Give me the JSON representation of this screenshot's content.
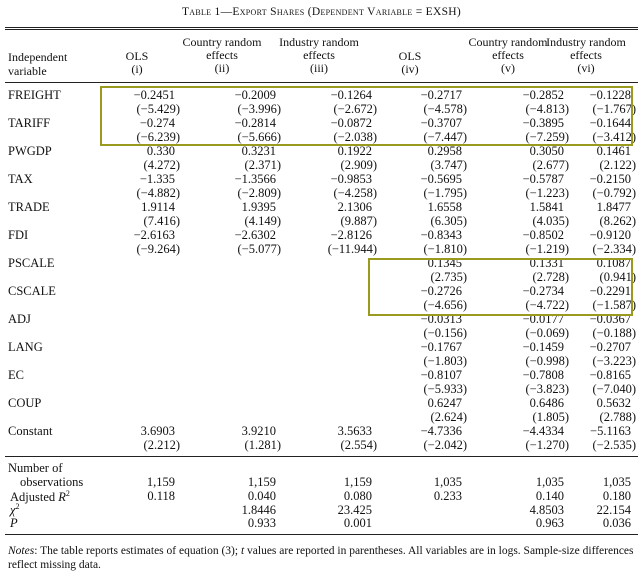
{
  "title": "Table 1—Export Shares (Dependent Variable = EXSH)",
  "header": {
    "label_line1": "Independent",
    "label_line2": "variable",
    "columns": [
      {
        "name": "OLS",
        "num": "(i)"
      },
      {
        "name": "Country random effects",
        "num": "(ii)"
      },
      {
        "name": "Industry random effects",
        "num": "(iii)"
      },
      {
        "name": "OLS",
        "num": "(iv)"
      },
      {
        "name": "Country random effects",
        "num": "(v)"
      },
      {
        "name": "Industry random effects",
        "num": "(vi)"
      }
    ]
  },
  "rows": [
    {
      "label": "FREIGHT",
      "coef": [
        "−0.2451",
        "−0.2009",
        "−0.1264",
        "−0.2717",
        "−0.2852",
        "−0.1228"
      ],
      "t": [
        "(−5.429)",
        "(−3.996)",
        "(−2.672)",
        "(−4.578)",
        "(−4.813)",
        "(−1.767)"
      ]
    },
    {
      "label": "TARIFF",
      "coef": [
        "−0.274",
        "−0.2814",
        "−0.0872",
        "−0.3707",
        "−0.3895",
        "−0.1644"
      ],
      "t": [
        "(−6.239)",
        "(−5.666)",
        "(−2.038)",
        "(−7.447)",
        "(−7.259)",
        "(−3.412)"
      ]
    },
    {
      "label": "PWGDP",
      "coef": [
        "0.330",
        "0.3231",
        "0.1922",
        "0.2958",
        "0.3050",
        "0.1461"
      ],
      "t": [
        "(4.272)",
        "(2.371)",
        "(2.909)",
        "(3.747)",
        "(2.677)",
        "(2.122)"
      ]
    },
    {
      "label": "TAX",
      "coef": [
        "−1.335",
        "−1.3566",
        "−0.9853",
        "−0.5695",
        "−0.5787",
        "−0.2150"
      ],
      "t": [
        "(−4.882)",
        "(−2.809)",
        "(−4.258)",
        "(−1.795)",
        "(−1.223)",
        "(−0.792)"
      ]
    },
    {
      "label": "TRADE",
      "coef": [
        "1.9114",
        "1.9395",
        "2.1306",
        "1.6558",
        "1.5841",
        "1.8477"
      ],
      "t": [
        "(7.416)",
        "(4.149)",
        "(9.887)",
        "(6.305)",
        "(4.035)",
        "(8.262)"
      ]
    },
    {
      "label": "FDI",
      "coef": [
        "−2.6163",
        "−2.6302",
        "−2.8126",
        "−0.8343",
        "−0.8502",
        "−0.9120"
      ],
      "t": [
        "(−9.264)",
        "(−5.077)",
        "(−11.944)",
        "(−1.810)",
        "(−1.219)",
        "(−2.334)"
      ]
    },
    {
      "label": "PSCALE",
      "coef": [
        "",
        "",
        "",
        "0.1345",
        "0.1331",
        "0.1087"
      ],
      "t": [
        "",
        "",
        "",
        "(2.735)",
        "(2.728)",
        "(0.941)"
      ]
    },
    {
      "label": "CSCALE",
      "coef": [
        "",
        "",
        "",
        "−0.2726",
        "−0.2734",
        "−0.2291"
      ],
      "t": [
        "",
        "",
        "",
        "(−4.656)",
        "(−4.722)",
        "(−1.587)"
      ]
    },
    {
      "label": "ADJ",
      "coef": [
        "",
        "",
        "",
        "−0.0313",
        "−0.0177",
        "−0.0367"
      ],
      "t": [
        "",
        "",
        "",
        "(−0.156)",
        "(−0.069)",
        "(−0.188)"
      ]
    },
    {
      "label": "LANG",
      "coef": [
        "",
        "",
        "",
        "−0.1767",
        "−0.1459",
        "−0.2707"
      ],
      "t": [
        "",
        "",
        "",
        "(−1.803)",
        "(−0.998)",
        "(−3.223)"
      ]
    },
    {
      "label": "EC",
      "coef": [
        "",
        "",
        "",
        "−0.8107",
        "−0.7808",
        "−0.8165"
      ],
      "t": [
        "",
        "",
        "",
        "(−5.933)",
        "(−3.823)",
        "(−7.040)"
      ]
    },
    {
      "label": "COUP",
      "coef": [
        "",
        "",
        "",
        "0.6247",
        "0.6486",
        "0.5632"
      ],
      "t": [
        "",
        "",
        "",
        "(2.624)",
        "(1.805)",
        "(2.788)"
      ]
    },
    {
      "label": "Constant",
      "coef": [
        "3.6903",
        "3.9210",
        "3.5633",
        "−4.7336",
        "−4.4334",
        "−5.1163"
      ],
      "t": [
        "(2.212)",
        "(1.281)",
        "(2.554)",
        "(−2.042)",
        "(−1.270)",
        "(−2.535)"
      ]
    }
  ],
  "stats": [
    {
      "label": "Number of",
      "label2": "observations",
      "values": [
        "1,159",
        "1,159",
        "1,159",
        "1,035",
        "1,035",
        "1,035"
      ]
    },
    {
      "label": "Adjusted R",
      "sup": "2",
      "values": [
        "0.118",
        "0.040",
        "0.080",
        "0.233",
        "0.140",
        "0.180"
      ]
    },
    {
      "label": "χ",
      "sup": "2",
      "values": [
        "",
        "1.8446",
        "23.425",
        "",
        "4.8503",
        "22.154"
      ]
    },
    {
      "label": "P",
      "values": [
        "",
        "0.933",
        "0.001",
        "",
        "0.963",
        "0.036"
      ]
    }
  ],
  "notes": {
    "prefix": "Notes",
    "text1": ": The table reports estimates of equation (3); ",
    "t_italic": "t",
    "text2": " values are reported in parentheses. All variables are in logs. Sample-size differences reflect missing data."
  },
  "highlight_color": "#9a9a1e"
}
